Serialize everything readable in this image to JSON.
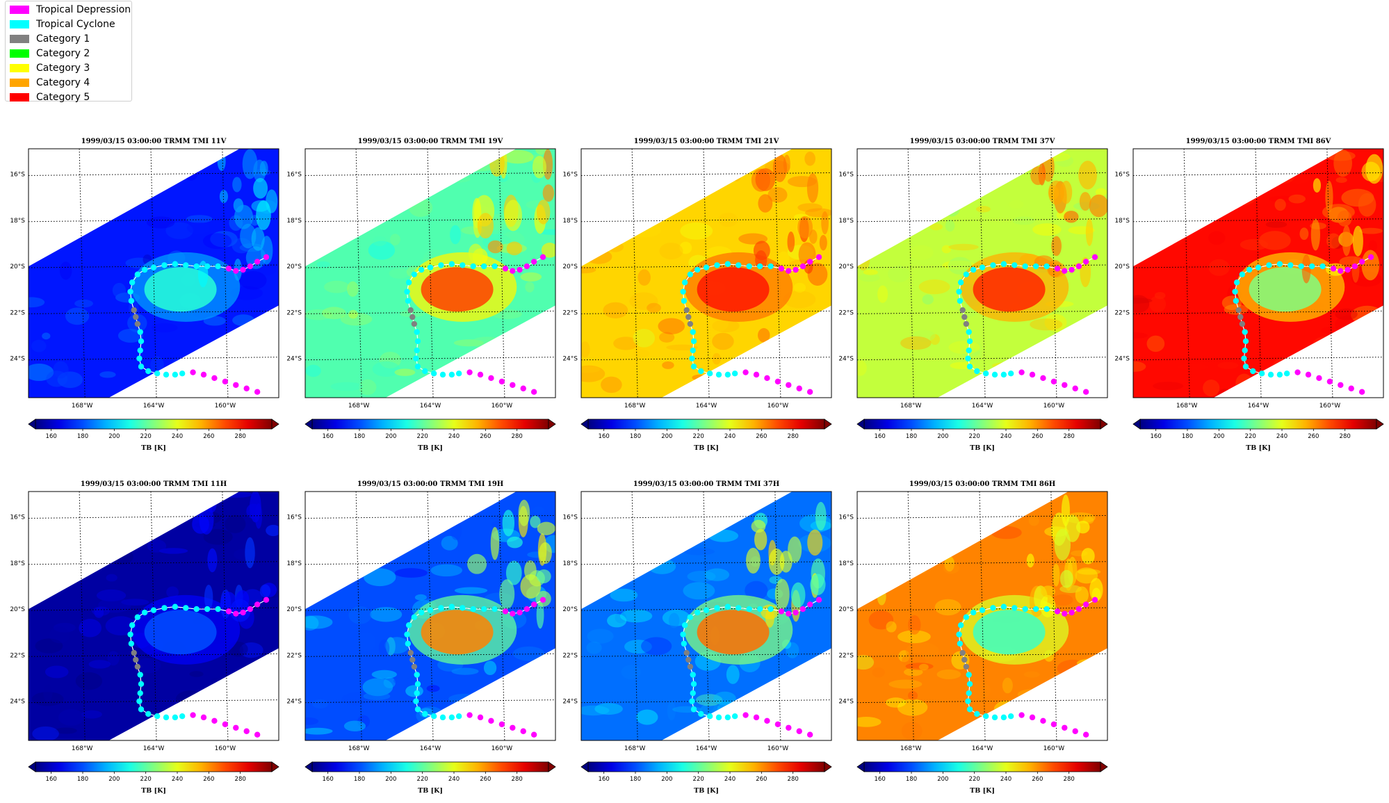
{
  "legend": {
    "items": [
      {
        "label": "Tropical Depression",
        "color": "#ff00ff"
      },
      {
        "label": "Tropical Cyclone",
        "color": "#00ffff"
      },
      {
        "label": "Category 1",
        "color": "#808080"
      },
      {
        "label": "Category 2",
        "color": "#00ff00"
      },
      {
        "label": "Category 3",
        "color": "#ffff00"
      },
      {
        "label": "Category 4",
        "color": "#ffa500"
      },
      {
        "label": "Category 5",
        "color": "#ff0000"
      }
    ]
  },
  "chart_data": [
    {
      "type": "heatmap",
      "title": "1999/03/15 03:00:00  TRMM TMI 11V",
      "background_tb": 172,
      "storm_tb": 212,
      "xlim": [
        -171,
        -157
      ],
      "ylim": [
        -25.7,
        -14.9
      ],
      "xticks": [
        -168,
        -164,
        -160
      ],
      "xtick_labels": [
        "168°W",
        "164°W",
        "160°W"
      ],
      "yticks": [
        -16,
        -18,
        -20,
        -22,
        -24
      ],
      "ytick_labels": [
        "16°S",
        "18°S",
        "20°S",
        "22°S",
        "24°S"
      ],
      "colorbar": {
        "label": "TB [K]",
        "min": 150,
        "max": 300,
        "ticks": [
          160,
          180,
          200,
          220,
          240,
          260,
          280
        ]
      }
    },
    {
      "type": "heatmap",
      "title": "1999/03/15 03:00:00  TRMM TMI 19V",
      "background_tb": 218,
      "storm_tb": 272,
      "xlim": [
        -171,
        -157
      ],
      "ylim": [
        -25.7,
        -14.9
      ],
      "xticks": [
        -168,
        -164,
        -160
      ],
      "xtick_labels": [
        "168°W",
        "164°W",
        "160°W"
      ],
      "yticks": [
        -16,
        -18,
        -20,
        -22,
        -24
      ],
      "ytick_labels": [
        "16°S",
        "18°S",
        "20°S",
        "22°S",
        "24°S"
      ],
      "colorbar": {
        "label": "TB [K]",
        "min": 150,
        "max": 300,
        "ticks": [
          160,
          180,
          200,
          220,
          240,
          260,
          280
        ]
      }
    },
    {
      "type": "heatmap",
      "title": "1999/03/15 03:00:00  TRMM TMI 21V",
      "background_tb": 250,
      "storm_tb": 278,
      "xlim": [
        -171,
        -157
      ],
      "ylim": [
        -25.7,
        -14.9
      ],
      "xticks": [
        -168,
        -164,
        -160
      ],
      "xtick_labels": [
        "168°W",
        "164°W",
        "160°W"
      ],
      "yticks": [
        -16,
        -18,
        -20,
        -22,
        -24
      ],
      "ytick_labels": [
        "16°S",
        "18°S",
        "20°S",
        "22°S",
        "24°S"
      ],
      "colorbar": {
        "label": "TB [K]",
        "min": 150,
        "max": 300,
        "ticks": [
          160,
          180,
          200,
          220,
          240,
          260,
          280
        ]
      }
    },
    {
      "type": "heatmap",
      "title": "1999/03/15 03:00:00  TRMM TMI 37V",
      "background_tb": 235,
      "storm_tb": 276,
      "xlim": [
        -171,
        -157
      ],
      "ylim": [
        -25.7,
        -14.9
      ],
      "xticks": [
        -168,
        -164,
        -160
      ],
      "xtick_labels": [
        "168°W",
        "164°W",
        "160°W"
      ],
      "yticks": [
        -16,
        -18,
        -20,
        -22,
        -24
      ],
      "ytick_labels": [
        "16°S",
        "18°S",
        "20°S",
        "22°S",
        "24°S"
      ],
      "colorbar": {
        "label": "TB [K]",
        "min": 150,
        "max": 300,
        "ticks": [
          160,
          180,
          200,
          220,
          240,
          260,
          280
        ]
      }
    },
    {
      "type": "heatmap",
      "title": "1999/03/15 03:00:00  TRMM TMI 86V",
      "background_tb": 280,
      "storm_tb": 225,
      "xlim": [
        -171,
        -157
      ],
      "ylim": [
        -25.7,
        -14.9
      ],
      "xticks": [
        -168,
        -164,
        -160
      ],
      "xtick_labels": [
        "168°W",
        "164°W",
        "160°W"
      ],
      "yticks": [
        -16,
        -18,
        -20,
        -22,
        -24
      ],
      "ytick_labels": [
        "16°S",
        "18°S",
        "20°S",
        "22°S",
        "24°S"
      ],
      "colorbar": {
        "label": "TB [K]",
        "min": 150,
        "max": 300,
        "ticks": [
          160,
          180,
          200,
          220,
          240,
          260,
          280
        ]
      }
    },
    {
      "type": "heatmap",
      "title": "1999/03/15 03:00:00  TRMM TMI 11H",
      "background_tb": 155,
      "storm_tb": 180,
      "xlim": [
        -171,
        -157
      ],
      "ylim": [
        -25.7,
        -14.9
      ],
      "xticks": [
        -168,
        -164,
        -160
      ],
      "xtick_labels": [
        "168°W",
        "164°W",
        "160°W"
      ],
      "yticks": [
        -16,
        -18,
        -20,
        -22,
        -24
      ],
      "ytick_labels": [
        "16°S",
        "18°S",
        "20°S",
        "22°S",
        "24°S"
      ],
      "colorbar": {
        "label": "TB [K]",
        "min": 150,
        "max": 300,
        "ticks": [
          160,
          180,
          200,
          220,
          240,
          260,
          280
        ]
      }
    },
    {
      "type": "heatmap",
      "title": "1999/03/15 03:00:00  TRMM TMI 19H",
      "background_tb": 180,
      "storm_tb": 262,
      "xlim": [
        -171,
        -157
      ],
      "ylim": [
        -25.7,
        -14.9
      ],
      "xticks": [
        -168,
        -164,
        -160
      ],
      "xtick_labels": [
        "168°W",
        "164°W",
        "160°W"
      ],
      "yticks": [
        -16,
        -18,
        -20,
        -22,
        -24
      ],
      "ytick_labels": [
        "16°S",
        "18°S",
        "20°S",
        "22°S",
        "24°S"
      ],
      "colorbar": {
        "label": "TB [K]",
        "min": 150,
        "max": 300,
        "ticks": [
          160,
          180,
          200,
          220,
          240,
          260,
          280
        ]
      }
    },
    {
      "type": "heatmap",
      "title": "1999/03/15 03:00:00  TRMM TMI 37H",
      "background_tb": 185,
      "storm_tb": 265,
      "xlim": [
        -171,
        -157
      ],
      "ylim": [
        -25.7,
        -14.9
      ],
      "xticks": [
        -168,
        -164,
        -160
      ],
      "xtick_labels": [
        "168°W",
        "164°W",
        "160°W"
      ],
      "yticks": [
        -16,
        -18,
        -20,
        -22,
        -24
      ],
      "ytick_labels": [
        "16°S",
        "18°S",
        "20°S",
        "22°S",
        "24°S"
      ],
      "colorbar": {
        "label": "TB [K]",
        "min": 150,
        "max": 300,
        "ticks": [
          160,
          180,
          200,
          220,
          240,
          260,
          280
        ]
      }
    },
    {
      "type": "heatmap",
      "title": "1999/03/15 03:00:00  TRMM TMI 86H",
      "background_tb": 262,
      "storm_tb": 215,
      "xlim": [
        -171,
        -157
      ],
      "ylim": [
        -25.7,
        -14.9
      ],
      "xticks": [
        -168,
        -164,
        -160
      ],
      "xtick_labels": [
        "168°W",
        "164°W",
        "160°W"
      ],
      "yticks": [
        -16,
        -18,
        -20,
        -22,
        -24
      ],
      "ytick_labels": [
        "16°S",
        "18°S",
        "20°S",
        "22°S",
        "24°S"
      ],
      "colorbar": {
        "label": "TB [K]",
        "min": 150,
        "max": 300,
        "ticks": [
          160,
          180,
          200,
          220,
          240,
          260,
          280
        ]
      }
    }
  ],
  "track": [
    {
      "lon": -157.7,
      "lat": -19.6,
      "cat": "TD"
    },
    {
      "lon": -158.2,
      "lat": -19.8,
      "cat": "TD"
    },
    {
      "lon": -158.6,
      "lat": -20.0,
      "cat": "TD"
    },
    {
      "lon": -159.0,
      "lat": -20.15,
      "cat": "TD"
    },
    {
      "lon": -159.4,
      "lat": -20.2,
      "cat": "TD"
    },
    {
      "lon": -159.8,
      "lat": -20.1,
      "cat": "TD"
    },
    {
      "lon": -160.4,
      "lat": -20.0,
      "cat": "TC"
    },
    {
      "lon": -161.0,
      "lat": -20.0,
      "cat": "TC"
    },
    {
      "lon": -161.6,
      "lat": -20.0,
      "cat": "TC"
    },
    {
      "lon": -162.2,
      "lat": -19.95,
      "cat": "TC"
    },
    {
      "lon": -162.8,
      "lat": -19.9,
      "cat": "TC"
    },
    {
      "lon": -163.4,
      "lat": -19.95,
      "cat": "TC"
    },
    {
      "lon": -164.0,
      "lat": -20.05,
      "cat": "TC"
    },
    {
      "lon": -164.5,
      "lat": -20.15,
      "cat": "TC"
    },
    {
      "lon": -164.9,
      "lat": -20.35,
      "cat": "TC"
    },
    {
      "lon": -165.2,
      "lat": -20.7,
      "cat": "TC"
    },
    {
      "lon": -165.3,
      "lat": -21.1,
      "cat": "TC"
    },
    {
      "lon": -165.25,
      "lat": -21.5,
      "cat": "TC"
    },
    {
      "lon": -165.1,
      "lat": -21.9,
      "cat": "C1"
    },
    {
      "lon": -165.0,
      "lat": -22.2,
      "cat": "C1"
    },
    {
      "lon": -164.9,
      "lat": -22.5,
      "cat": "C1"
    },
    {
      "lon": -164.75,
      "lat": -22.85,
      "cat": "TC"
    },
    {
      "lon": -164.7,
      "lat": -23.25,
      "cat": "TC"
    },
    {
      "lon": -164.75,
      "lat": -23.65,
      "cat": "TC"
    },
    {
      "lon": -164.8,
      "lat": -24.0,
      "cat": "TC"
    },
    {
      "lon": -164.7,
      "lat": -24.35,
      "cat": "TC"
    },
    {
      "lon": -164.3,
      "lat": -24.55,
      "cat": "TC"
    },
    {
      "lon": -163.8,
      "lat": -24.65,
      "cat": "TC"
    },
    {
      "lon": -163.3,
      "lat": -24.7,
      "cat": "TC"
    },
    {
      "lon": -162.8,
      "lat": -24.7,
      "cat": "TC"
    },
    {
      "lon": -162.4,
      "lat": -24.65,
      "cat": "TC"
    },
    {
      "lon": -161.8,
      "lat": -24.6,
      "cat": "TD"
    },
    {
      "lon": -161.2,
      "lat": -24.7,
      "cat": "TD"
    },
    {
      "lon": -160.6,
      "lat": -24.85,
      "cat": "TD"
    },
    {
      "lon": -160.0,
      "lat": -25.0,
      "cat": "TD"
    },
    {
      "lon": -159.4,
      "lat": -25.15,
      "cat": "TD"
    },
    {
      "lon": -158.8,
      "lat": -25.3,
      "cat": "TD"
    },
    {
      "lon": -158.2,
      "lat": -25.45,
      "cat": "TD"
    }
  ]
}
